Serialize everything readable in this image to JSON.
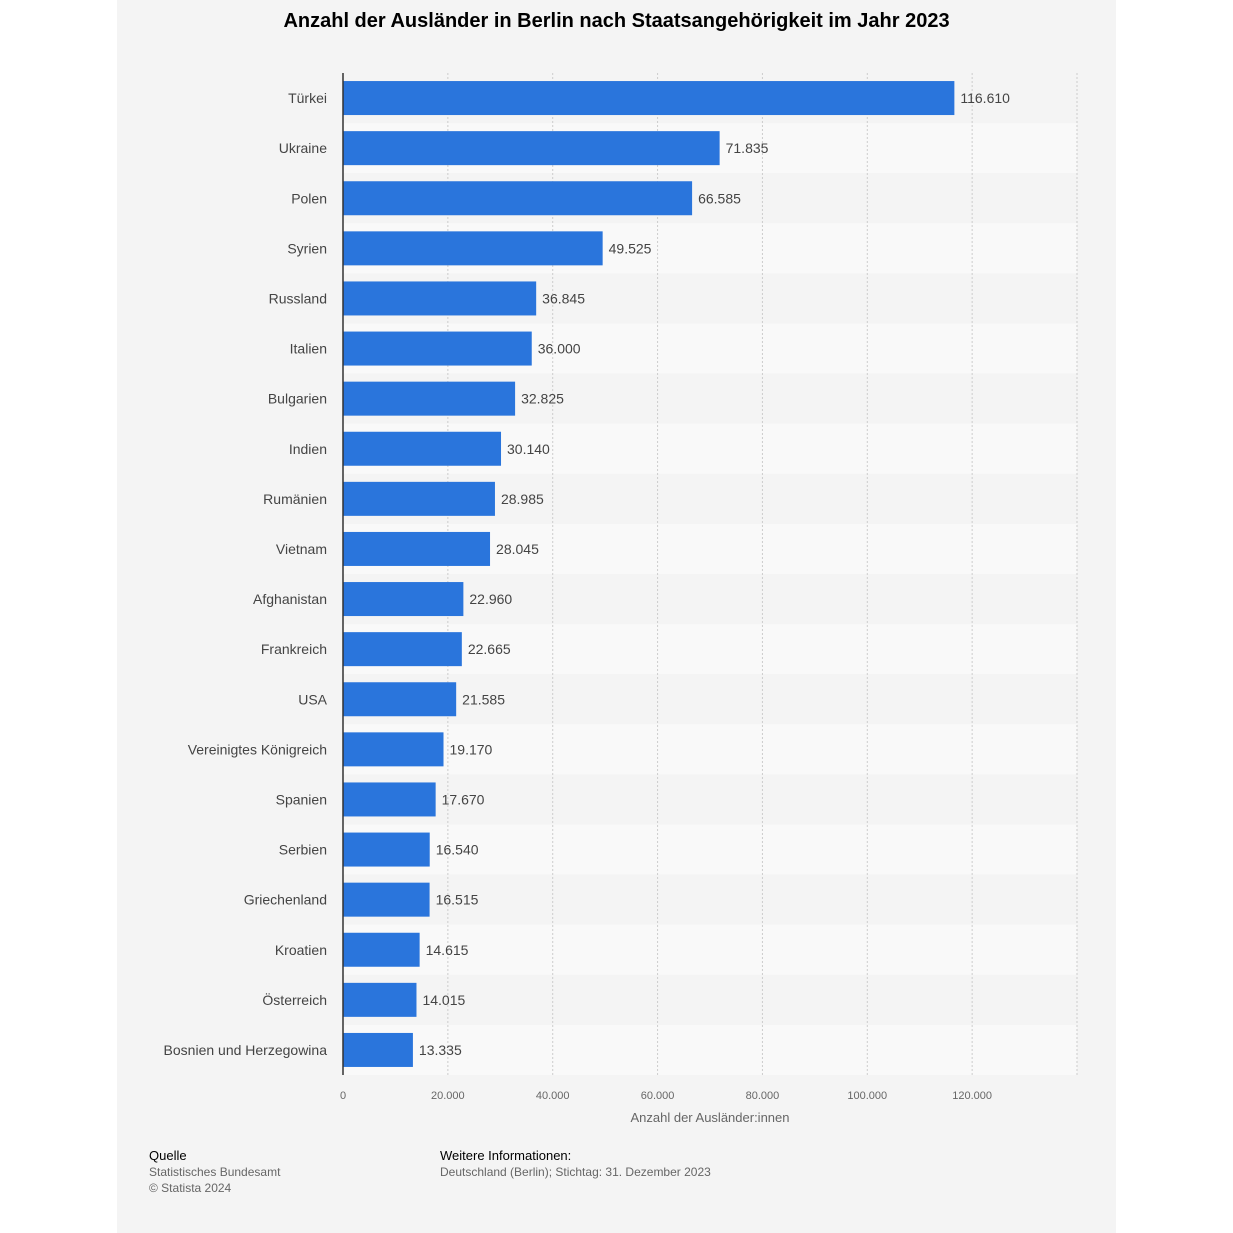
{
  "colors": {
    "bar": "#2a75dc",
    "panel": "#f4f4f4",
    "grid": "#cccccc",
    "axis": "#333333"
  },
  "chart_data": {
    "type": "bar",
    "orientation": "horizontal",
    "title": "Anzahl der Ausländer in Berlin nach Staatsangehörigkeit im Jahr 2023",
    "xlabel": "Anzahl der Ausländer:innen",
    "ylabel": "",
    "xlim": [
      0,
      140000
    ],
    "x_ticks": [
      0,
      20000,
      40000,
      60000,
      80000,
      100000,
      120000
    ],
    "x_tick_labels": [
      "0",
      "20.000",
      "40.000",
      "60.000",
      "80.000",
      "100.000",
      "120.000"
    ],
    "grid": true,
    "categories": [
      "Türkei",
      "Ukraine",
      "Polen",
      "Syrien",
      "Russland",
      "Italien",
      "Bulgarien",
      "Indien",
      "Rumänien",
      "Vietnam",
      "Afghanistan",
      "Frankreich",
      "USA",
      "Vereinigtes Königreich",
      "Spanien",
      "Serbien",
      "Griechenland",
      "Kroatien",
      "Österreich",
      "Bosnien und Herzegowina"
    ],
    "values": [
      116610,
      71835,
      66585,
      49525,
      36845,
      36000,
      32825,
      30140,
      28985,
      28045,
      22960,
      22665,
      21585,
      19170,
      17670,
      16540,
      16515,
      14615,
      14015,
      13335
    ],
    "value_labels": [
      "116.610",
      "71.835",
      "66.585",
      "49.525",
      "36.845",
      "36.000",
      "32.825",
      "30.140",
      "28.985",
      "28.045",
      "22.960",
      "22.665",
      "21.585",
      "19.170",
      "17.670",
      "16.540",
      "16.515",
      "14.615",
      "14.015",
      "13.335"
    ]
  },
  "footer": {
    "source_heading": "Quelle",
    "source_lines": [
      "Statistisches Bundesamt",
      "© Statista 2024"
    ],
    "info_heading": "Weitere Informationen:",
    "info_lines": [
      "Deutschland (Berlin); Stichtag: 31. Dezember 2023"
    ]
  }
}
